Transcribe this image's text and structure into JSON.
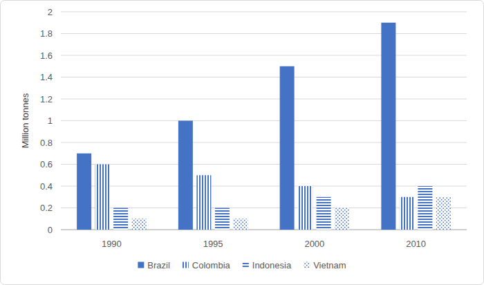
{
  "chart_data": {
    "type": "bar",
    "y_label": "Million tonnes",
    "categories": [
      "1990",
      "1995",
      "2000",
      "2010"
    ],
    "series": [
      {
        "name": "Brazil",
        "color": "#4472c4",
        "values": [
          0.7,
          1.0,
          1.5,
          1.9
        ]
      },
      {
        "name": "Colombia",
        "color": "#4472c4",
        "values": [
          0.6,
          0.5,
          0.4,
          0.3
        ]
      },
      {
        "name": "Indonesia",
        "color": "#4472c4",
        "values": [
          0.2,
          0.2,
          0.3,
          0.4
        ]
      },
      {
        "name": "Vietnam",
        "color": "#4472c4",
        "values": [
          0.1,
          0.1,
          0.2,
          0.3
        ]
      }
    ],
    "ylim": [
      0,
      2
    ],
    "yticks": [
      0,
      0.2,
      0.4,
      0.6,
      0.8,
      1,
      1.2,
      1.4,
      1.6,
      1.8,
      2
    ],
    "grid": true,
    "legend": "bottom"
  }
}
